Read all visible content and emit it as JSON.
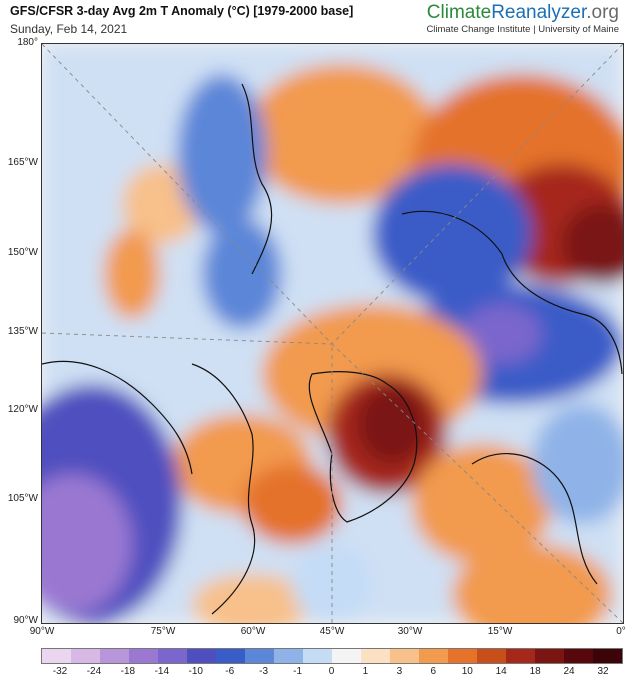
{
  "header": {
    "title": "GFS/CFSR 3-day Avg 2m T Anomaly (°C) [1979-2000 base]",
    "date": "Sunday, Feb 14, 2021",
    "brand_climate": "Climate",
    "brand_reanalyzer": "Reanalyzer",
    "brand_org": ".org",
    "institution": "Climate Change Institute | University of Maine"
  },
  "map": {
    "y_labels": [
      "180°",
      "165°W",
      "150°W",
      "135°W",
      "120°W",
      "105°W",
      "90°W"
    ],
    "x_labels": [
      "90°W",
      "75°W",
      "60°W",
      "45°W",
      "30°W",
      "15°W",
      "0°"
    ]
  },
  "colorbar": {
    "labels": [
      "-32",
      "-24",
      "-18",
      "-14",
      "-10",
      "-6",
      "-3",
      "-1",
      "0",
      "1",
      "3",
      "6",
      "10",
      "14",
      "18",
      "24",
      "32"
    ],
    "colors": [
      "#ead6ee",
      "#d8b8e4",
      "#b896da",
      "#9a78d2",
      "#7a66cc",
      "#4f4fbf",
      "#3a5cc7",
      "#5c86d8",
      "#8fb3e8",
      "#c4dcf6",
      "#f4f4f4",
      "#fbe0c4",
      "#f8c08a",
      "#f29a4e",
      "#e4722a",
      "#c84e1a",
      "#a6281a",
      "#7a1512",
      "#58080c",
      "#3c0408"
    ]
  }
}
